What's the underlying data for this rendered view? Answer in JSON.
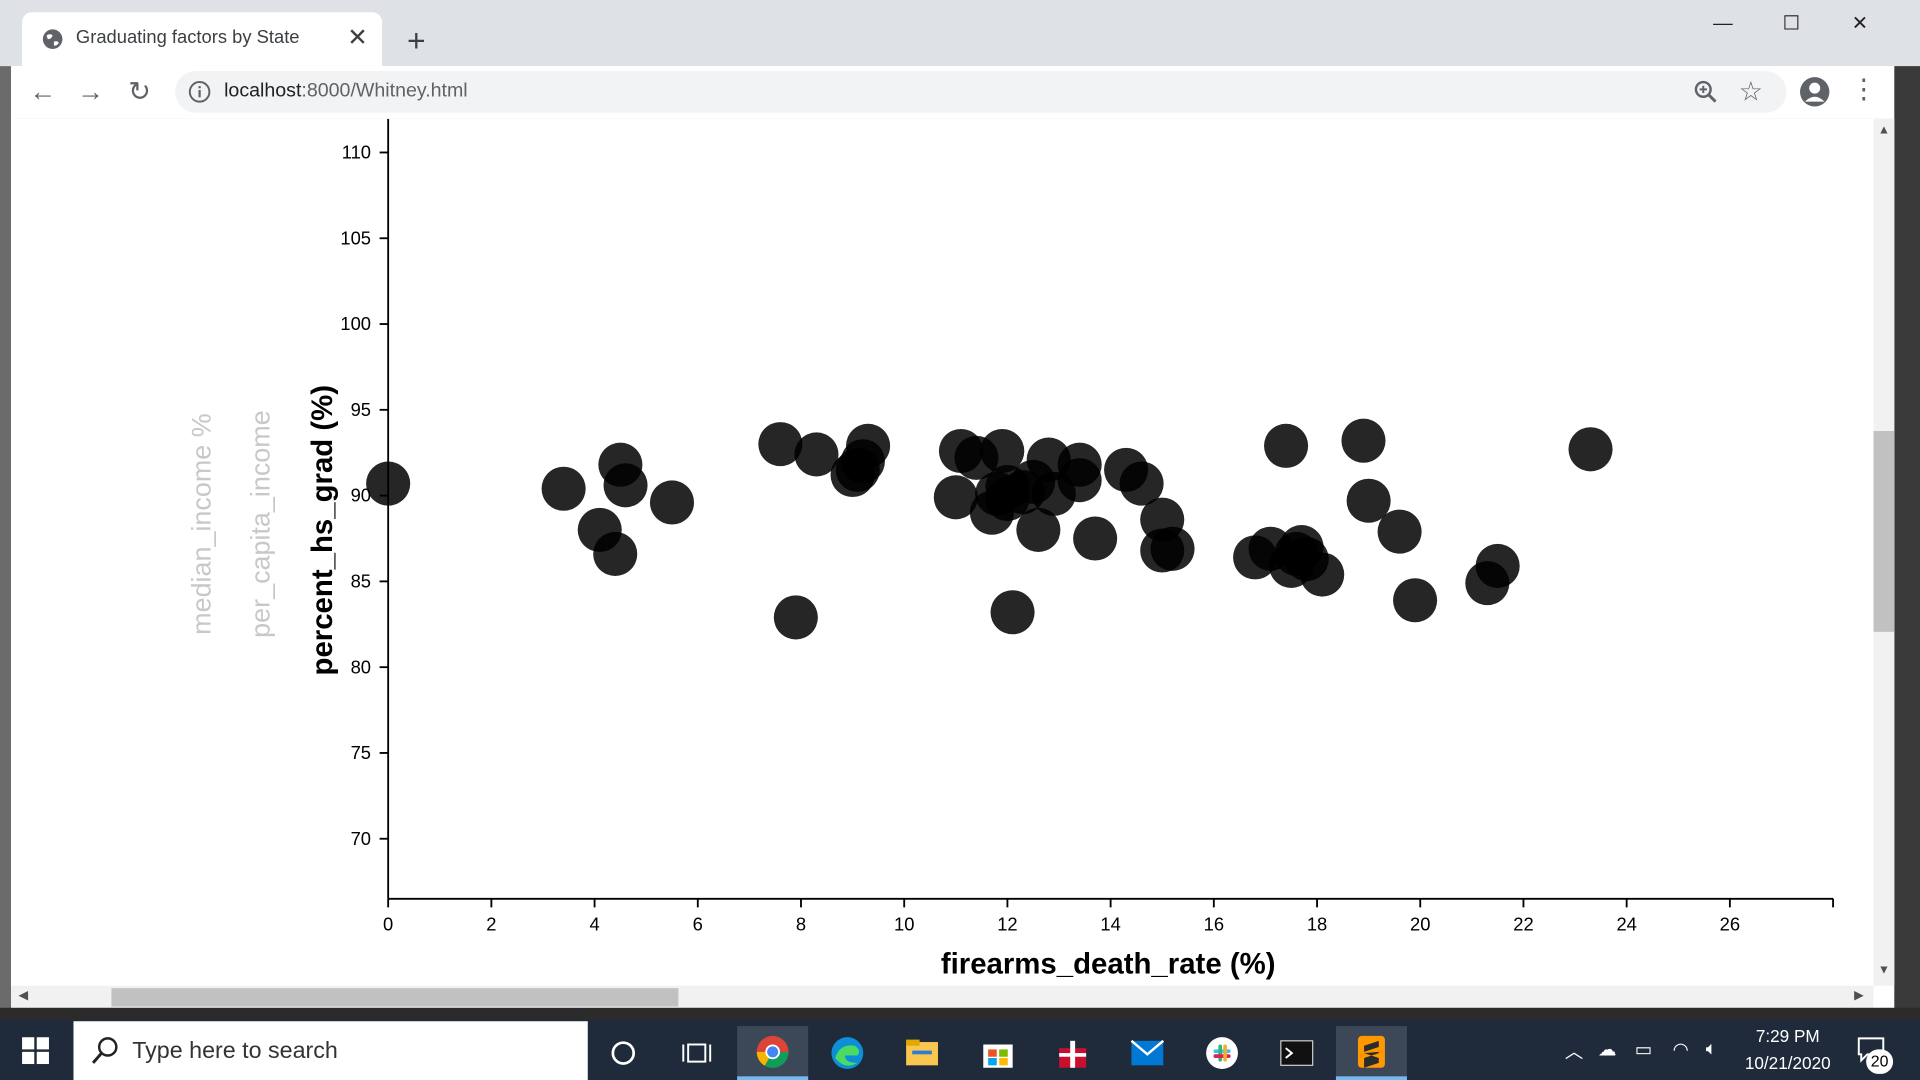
{
  "browser": {
    "tab_title": "Graduating factors by State",
    "tab_close": "✕",
    "new_tab": "+",
    "url_host": "localhost",
    "url_rest": ":8000/Whitney.html",
    "window_controls": {
      "minimize": "—",
      "maximize": "☐",
      "close": "✕"
    }
  },
  "page": {
    "inactive_y_labels": [
      "median_income %",
      "per_capita_income"
    ]
  },
  "chart_data": {
    "type": "scatter",
    "xlabel": "firearms_death_rate (%)",
    "ylabel": "percent_hs_grad (%)",
    "xlim": [
      0,
      28
    ],
    "ylim": [
      66.5,
      112
    ],
    "x_ticks": [
      0,
      2,
      4,
      6,
      8,
      10,
      12,
      14,
      16,
      18,
      20,
      22,
      24,
      26
    ],
    "y_ticks": [
      70,
      75,
      80,
      85,
      90,
      95,
      100,
      105,
      110
    ],
    "point_color": "#000000",
    "point_opacity": 0.85,
    "points": [
      [
        0.0,
        90.7
      ],
      [
        3.4,
        90.4
      ],
      [
        4.1,
        88.0
      ],
      [
        4.4,
        86.6
      ],
      [
        4.5,
        91.8
      ],
      [
        4.6,
        90.6
      ],
      [
        5.5,
        89.6
      ],
      [
        7.6,
        93.0
      ],
      [
        7.9,
        82.9
      ],
      [
        8.3,
        92.4
      ],
      [
        9.0,
        91.2
      ],
      [
        9.1,
        91.5
      ],
      [
        9.2,
        92.0
      ],
      [
        9.3,
        92.9
      ],
      [
        11.0,
        89.9
      ],
      [
        11.1,
        92.6
      ],
      [
        11.4,
        92.2
      ],
      [
        11.7,
        89.0
      ],
      [
        11.8,
        90.1
      ],
      [
        11.9,
        92.6
      ],
      [
        12.0,
        90.5
      ],
      [
        12.0,
        89.8
      ],
      [
        12.1,
        83.2
      ],
      [
        12.3,
        90.2
      ],
      [
        12.5,
        90.8
      ],
      [
        12.6,
        88.0
      ],
      [
        12.8,
        92.1
      ],
      [
        12.9,
        90.1
      ],
      [
        13.4,
        91.8
      ],
      [
        13.4,
        90.9
      ],
      [
        13.7,
        87.5
      ],
      [
        14.3,
        91.5
      ],
      [
        14.6,
        90.7
      ],
      [
        15.0,
        88.6
      ],
      [
        15.0,
        86.8
      ],
      [
        15.2,
        86.9
      ],
      [
        16.8,
        86.4
      ],
      [
        17.1,
        86.9
      ],
      [
        17.4,
        92.9
      ],
      [
        17.5,
        85.9
      ],
      [
        17.6,
        86.6
      ],
      [
        17.7,
        87.0
      ],
      [
        17.8,
        86.3
      ],
      [
        18.1,
        85.4
      ],
      [
        18.9,
        93.2
      ],
      [
        19.0,
        89.7
      ],
      [
        19.6,
        87.9
      ],
      [
        19.9,
        83.9
      ],
      [
        21.3,
        84.9
      ],
      [
        21.5,
        85.9
      ],
      [
        23.3,
        92.7
      ]
    ]
  },
  "taskbar": {
    "search_placeholder": "Type here to search",
    "time": "7:29 PM",
    "date": "10/21/2020",
    "notifications": "20"
  }
}
